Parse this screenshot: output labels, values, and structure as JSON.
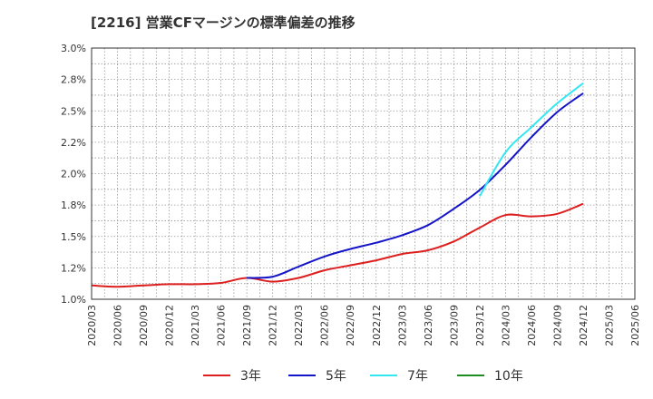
{
  "chart_data": {
    "type": "line",
    "title": "[2216]  営業CFマージンの標準偏差の推移",
    "xlabel": "",
    "ylabel": "",
    "ylim": [
      0.01,
      0.03
    ],
    "grid": true,
    "legend_position": "bottom",
    "y_ticks": [
      "1.0%",
      "1.2%",
      "1.5%",
      "1.8%",
      "2.0%",
      "2.2%",
      "2.5%",
      "2.8%",
      "3.0%"
    ],
    "x_ticks": [
      "2020/03",
      "2020/06",
      "2020/09",
      "2020/12",
      "2021/03",
      "2021/06",
      "2021/09",
      "2021/12",
      "2022/03",
      "2022/06",
      "2022/09",
      "2022/12",
      "2023/03",
      "2023/06",
      "2023/09",
      "2023/12",
      "2024/03",
      "2024/06",
      "2024/09",
      "2024/12",
      "2025/03",
      "2025/06"
    ],
    "x": [
      "2020/03",
      "2020/06",
      "2020/09",
      "2020/12",
      "2021/03",
      "2021/06",
      "2021/09",
      "2021/12",
      "2022/03",
      "2022/06",
      "2022/09",
      "2022/12",
      "2023/03",
      "2023/06",
      "2023/09",
      "2023/12",
      "2024/03",
      "2024/06",
      "2024/09",
      "2024/12"
    ],
    "series": [
      {
        "name": "3年",
        "color": "#dd1f1f",
        "values": [
          0.0111,
          0.011,
          0.0111,
          0.0112,
          0.0112,
          0.0113,
          0.0117,
          0.0114,
          0.0117,
          0.0123,
          0.0127,
          0.0131,
          0.0136,
          0.0139,
          0.0146,
          0.0157,
          0.0167,
          0.0166,
          0.0168,
          0.0176
        ]
      },
      {
        "name": "5年",
        "color": "#1414c8",
        "values": [
          null,
          null,
          null,
          null,
          null,
          null,
          0.0117,
          0.0118,
          0.0126,
          0.0134,
          0.014,
          0.0145,
          0.0151,
          0.0159,
          0.0172,
          0.0187,
          0.0207,
          0.0229,
          0.0249,
          0.0264
        ]
      },
      {
        "name": "7年",
        "color": "#33e6f2",
        "values": [
          null,
          null,
          null,
          null,
          null,
          null,
          null,
          null,
          null,
          null,
          null,
          null,
          null,
          null,
          null,
          0.0182,
          0.0217,
          0.0237,
          0.0256,
          0.0272
        ]
      },
      {
        "name": "10年",
        "color": "#1e8c1e",
        "values": [
          null,
          null,
          null,
          null,
          null,
          null,
          null,
          null,
          null,
          null,
          null,
          null,
          null,
          null,
          null,
          null,
          null,
          null,
          null,
          null
        ]
      }
    ]
  }
}
